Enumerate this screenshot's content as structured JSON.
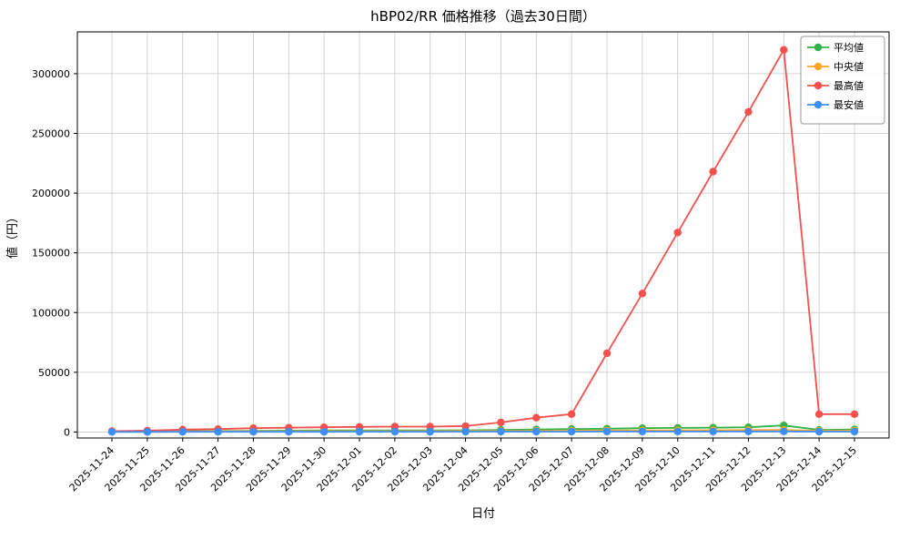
{
  "chart_data": {
    "type": "line",
    "title": "hBP02/RR 価格推移（過去30日間）",
    "xlabel": "日付",
    "ylabel": "値（円）",
    "categories": [
      "2025-11-24",
      "2025-11-25",
      "2025-11-26",
      "2025-11-27",
      "2025-11-28",
      "2025-11-29",
      "2025-11-30",
      "2025-12-01",
      "2025-12-02",
      "2025-12-03",
      "2025-12-04",
      "2025-12-05",
      "2025-12-06",
      "2025-12-07",
      "2025-12-08",
      "2025-12-09",
      "2025-12-10",
      "2025-12-11",
      "2025-12-12",
      "2025-12-13",
      "2025-12-14",
      "2025-12-15"
    ],
    "series": [
      {
        "name": "平均値",
        "key": "average",
        "color": "#32b34a",
        "values": [
          500,
          600,
          800,
          900,
          1000,
          1200,
          1300,
          1300,
          1400,
          1400,
          1500,
          1800,
          2200,
          2500,
          2800,
          3200,
          3500,
          3600,
          4000,
          5500,
          1800,
          2200
        ]
      },
      {
        "name": "中央値",
        "key": "median",
        "color": "#ffa426",
        "values": [
          400,
          450,
          500,
          550,
          600,
          650,
          700,
          750,
          750,
          800,
          850,
          900,
          1000,
          1100,
          1200,
          1300,
          1400,
          1500,
          1600,
          1800,
          1000,
          1200
        ]
      },
      {
        "name": "最高値",
        "key": "max",
        "color": "#f4514e",
        "values": [
          800,
          1200,
          2000,
          2500,
          3200,
          3600,
          4000,
          4300,
          4500,
          4500,
          5000,
          8000,
          12000,
          15000,
          66000,
          116000,
          167000,
          218000,
          268000,
          320000,
          15000,
          15000
        ]
      },
      {
        "name": "最安値",
        "key": "min",
        "color": "#3e8ef7",
        "values": [
          100,
          100,
          150,
          150,
          200,
          200,
          200,
          250,
          250,
          250,
          300,
          300,
          350,
          350,
          400,
          400,
          450,
          450,
          500,
          500,
          300,
          300
        ]
      }
    ],
    "ylim": [
      -5000,
      335000
    ],
    "yticks": [
      0,
      50000,
      100000,
      150000,
      200000,
      250000,
      300000
    ],
    "grid": true,
    "legend_position": "upper right",
    "grid_color": "#c8c8c8",
    "axis_color": "#000000"
  }
}
